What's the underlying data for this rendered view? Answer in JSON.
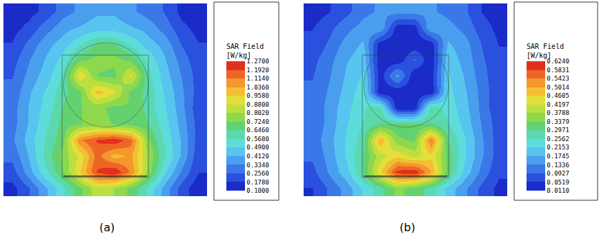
{
  "chart_data": [
    {
      "type": "heatmap",
      "title": "(a)",
      "colorbar_title": [
        "SAR Field",
        "[W/kg]"
      ],
      "tick_labels": false,
      "zlim": [
        0.1,
        1.27
      ],
      "zticks": [
        {
          "value": 0.1,
          "label": "0.1000"
        },
        {
          "value": 0.178,
          "label": "0.1780"
        },
        {
          "value": 0.256,
          "label": "0.2560"
        },
        {
          "value": 0.334,
          "label": "0.3340"
        },
        {
          "value": 0.412,
          "label": "0.4120"
        },
        {
          "value": 0.49,
          "label": "0.4900"
        },
        {
          "value": 0.568,
          "label": "0.5680"
        },
        {
          "value": 0.646,
          "label": "0.6460"
        },
        {
          "value": 0.724,
          "label": "0.7240"
        },
        {
          "value": 0.802,
          "label": "0.8020"
        },
        {
          "value": 0.88,
          "label": "0.8800"
        },
        {
          "value": 0.958,
          "label": "0.9580"
        },
        {
          "value": 1.036,
          "label": "1.0360"
        },
        {
          "value": 1.114,
          "label": "1.1140"
        },
        {
          "value": 1.192,
          "label": "1.1920"
        },
        {
          "value": 1.27,
          "label": "1.2700"
        }
      ],
      "cells": [
        [
          0.12,
          0.15,
          0.2,
          0.3,
          0.35,
          0.4,
          0.4,
          0.35,
          0.3,
          0.25,
          0.15,
          0.12
        ],
        [
          0.15,
          0.2,
          0.3,
          0.38,
          0.42,
          0.45,
          0.45,
          0.42,
          0.38,
          0.3,
          0.2,
          0.15
        ],
        [
          0.18,
          0.28,
          0.38,
          0.45,
          0.55,
          0.65,
          0.65,
          0.55,
          0.45,
          0.38,
          0.25,
          0.18
        ],
        [
          0.22,
          0.33,
          0.42,
          0.52,
          0.7,
          0.75,
          0.75,
          0.7,
          0.55,
          0.42,
          0.3,
          0.2
        ],
        [
          0.25,
          0.36,
          0.45,
          0.58,
          0.95,
          0.72,
          0.7,
          0.9,
          0.6,
          0.45,
          0.33,
          0.22
        ],
        [
          0.28,
          0.4,
          0.5,
          0.62,
          0.7,
          1.0,
          0.9,
          0.7,
          0.62,
          0.48,
          0.35,
          0.22
        ],
        [
          0.3,
          0.42,
          0.52,
          0.65,
          0.72,
          0.75,
          0.7,
          0.72,
          0.62,
          0.5,
          0.36,
          0.2
        ],
        [
          0.3,
          0.42,
          0.55,
          0.68,
          0.72,
          0.75,
          0.72,
          0.7,
          0.65,
          0.52,
          0.38,
          0.22
        ],
        [
          0.32,
          0.45,
          0.58,
          0.7,
          1.1,
          1.2,
          1.25,
          1.15,
          0.75,
          0.55,
          0.4,
          0.22
        ],
        [
          0.28,
          0.42,
          0.6,
          0.75,
          0.9,
          1.15,
          1.0,
          1.05,
          0.8,
          0.58,
          0.4,
          0.2
        ],
        [
          0.22,
          0.38,
          0.55,
          0.72,
          0.95,
          1.2,
          1.27,
          1.1,
          0.78,
          0.5,
          0.32,
          0.18
        ],
        [
          0.15,
          0.25,
          0.4,
          0.55,
          0.7,
          0.85,
          0.8,
          0.7,
          0.55,
          0.38,
          0.22,
          0.12
        ]
      ]
    },
    {
      "type": "heatmap",
      "title": "(b)",
      "colorbar_title": [
        "SAR Field",
        "[W/kg]"
      ],
      "tick_labels": false,
      "zlim": [
        0.011,
        0.624
      ],
      "zticks": [
        {
          "value": 0.011,
          "label": "0.0110"
        },
        {
          "value": 0.0519,
          "label": "0.0519"
        },
        {
          "value": 0.0927,
          "label": "0.0927"
        },
        {
          "value": 0.1336,
          "label": "0.1336"
        },
        {
          "value": 0.1745,
          "label": "0.1745"
        },
        {
          "value": 0.2153,
          "label": "0.2153"
        },
        {
          "value": 0.2562,
          "label": "0.2562"
        },
        {
          "value": 0.2971,
          "label": "0.2971"
        },
        {
          "value": 0.3379,
          "label": "0.3379"
        },
        {
          "value": 0.3788,
          "label": "0.3788"
        },
        {
          "value": 0.4197,
          "label": "0.4197"
        },
        {
          "value": 0.4605,
          "label": "0.4605"
        },
        {
          "value": 0.5014,
          "label": "0.5014"
        },
        {
          "value": 0.5423,
          "label": "0.5423"
        },
        {
          "value": 0.5831,
          "label": "0.5831"
        },
        {
          "value": 0.624,
          "label": "0.6240"
        }
      ],
      "cells": [
        [
          0.03,
          0.05,
          0.08,
          0.12,
          0.14,
          0.15,
          0.15,
          0.14,
          0.12,
          0.1,
          0.05,
          0.03
        ],
        [
          0.05,
          0.08,
          0.12,
          0.15,
          0.17,
          0.03,
          0.03,
          0.17,
          0.15,
          0.12,
          0.07,
          0.04
        ],
        [
          0.06,
          0.1,
          0.15,
          0.18,
          0.03,
          0.02,
          0.02,
          0.03,
          0.18,
          0.15,
          0.09,
          0.05
        ],
        [
          0.08,
          0.12,
          0.17,
          0.2,
          0.02,
          0.02,
          0.1,
          0.02,
          0.2,
          0.16,
          0.1,
          0.06
        ],
        [
          0.09,
          0.13,
          0.18,
          0.22,
          0.03,
          0.15,
          0.02,
          0.03,
          0.22,
          0.17,
          0.11,
          0.06
        ],
        [
          0.1,
          0.14,
          0.19,
          0.24,
          0.02,
          0.02,
          0.02,
          0.02,
          0.23,
          0.18,
          0.12,
          0.06
        ],
        [
          0.1,
          0.15,
          0.2,
          0.25,
          0.28,
          0.02,
          0.02,
          0.28,
          0.24,
          0.19,
          0.12,
          0.06
        ],
        [
          0.1,
          0.15,
          0.21,
          0.26,
          0.3,
          0.3,
          0.3,
          0.3,
          0.26,
          0.2,
          0.13,
          0.07
        ],
        [
          0.11,
          0.16,
          0.22,
          0.28,
          0.5,
          0.35,
          0.33,
          0.55,
          0.3,
          0.22,
          0.14,
          0.07
        ],
        [
          0.1,
          0.15,
          0.22,
          0.3,
          0.4,
          0.45,
          0.4,
          0.45,
          0.32,
          0.22,
          0.14,
          0.07
        ],
        [
          0.08,
          0.14,
          0.2,
          0.3,
          0.45,
          0.6,
          0.62,
          0.5,
          0.32,
          0.2,
          0.12,
          0.06
        ],
        [
          0.05,
          0.1,
          0.15,
          0.22,
          0.28,
          0.35,
          0.32,
          0.28,
          0.2,
          0.14,
          0.08,
          0.04
        ]
      ]
    }
  ]
}
